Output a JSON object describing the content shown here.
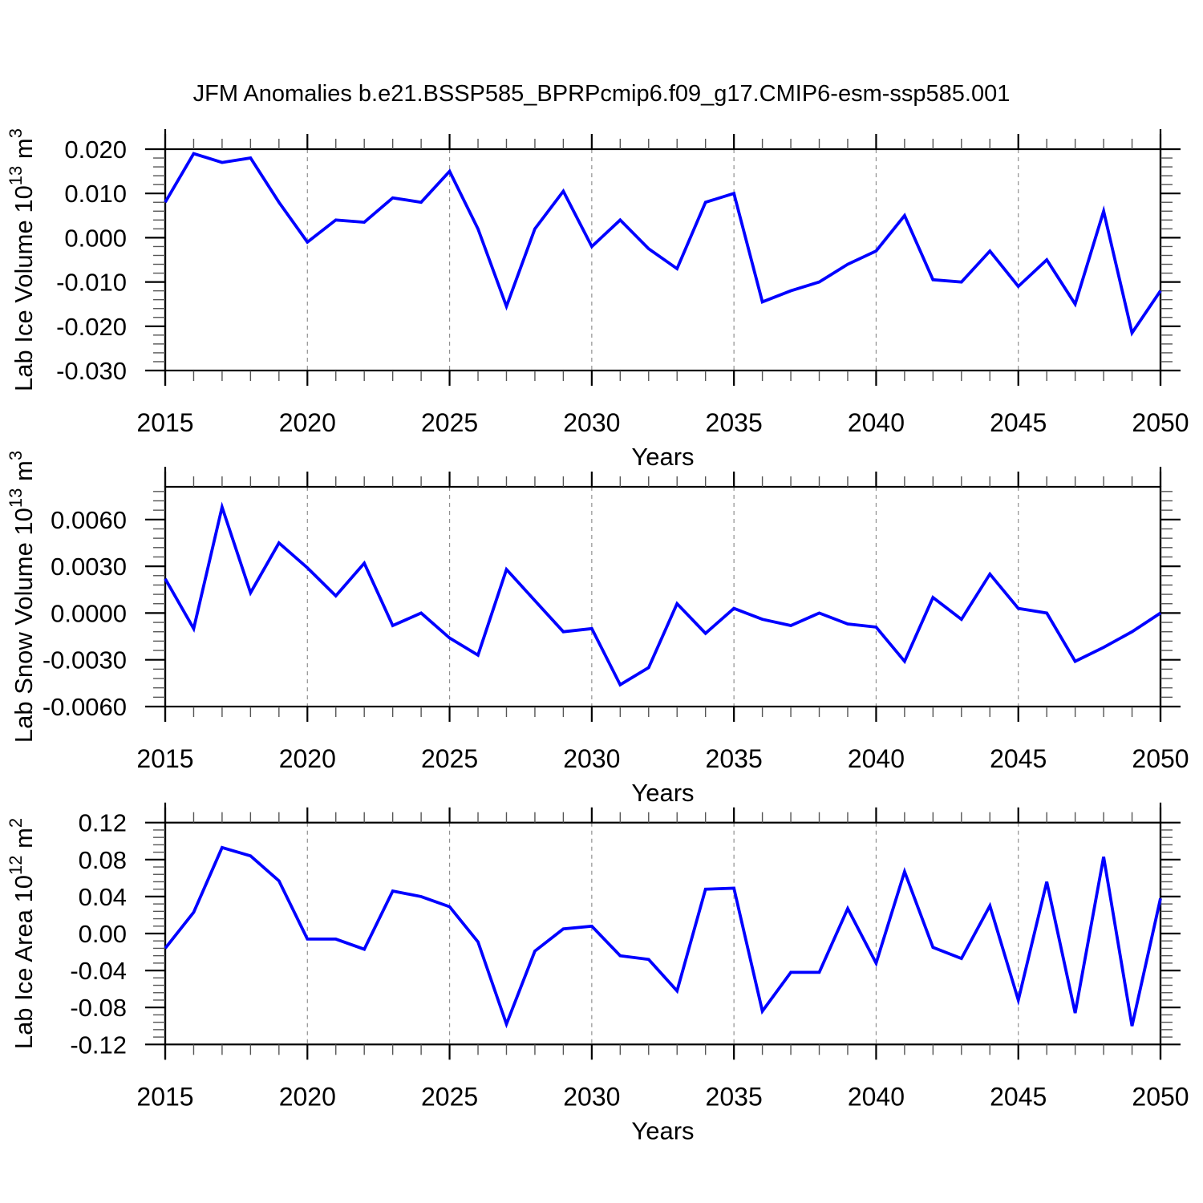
{
  "title": "JFM Anomalies b.e21.BSSP585_BPRPcmip6.f09_g17.CMIP6-esm-ssp585.001",
  "line_color": "#0000FF",
  "grid_color": "#909090",
  "frame_color": "#000000",
  "chart_data": [
    {
      "type": "line",
      "ylabel": "Lab Ice Volume 10¹³ m³",
      "ylabel_parts": [
        {
          "t": "Lab Ice Volume 10"
        },
        {
          "t": "13",
          "sup": true
        },
        {
          "t": " m"
        },
        {
          "t": "3",
          "sup": true
        }
      ],
      "xlabel": "Years",
      "x": [
        2015,
        2016,
        2017,
        2018,
        2019,
        2020,
        2021,
        2022,
        2023,
        2024,
        2025,
        2026,
        2027,
        2028,
        2029,
        2030,
        2031,
        2032,
        2033,
        2034,
        2035,
        2036,
        2037,
        2038,
        2039,
        2040,
        2041,
        2042,
        2043,
        2044,
        2045,
        2046,
        2047,
        2048,
        2049,
        2050
      ],
      "values": [
        0.008,
        0.019,
        0.017,
        0.018,
        0.008,
        -0.001,
        0.004,
        0.0035,
        0.009,
        0.008,
        0.015,
        0.002,
        -0.0155,
        0.002,
        0.0105,
        -0.002,
        0.004,
        -0.0025,
        -0.007,
        0.008,
        0.01,
        -0.0145,
        -0.012,
        -0.01,
        -0.006,
        -0.003,
        0.005,
        -0.0095,
        -0.01,
        -0.003,
        -0.011,
        -0.005,
        -0.015,
        0.006,
        -0.0215,
        -0.012
      ],
      "xlim": [
        2015,
        2050
      ],
      "ylim": [
        -0.03,
        0.02
      ],
      "ytick_values": [
        0.02,
        0.01,
        0.0,
        -0.01,
        -0.02,
        -0.03
      ],
      "ytick_labels": [
        "0.020",
        "0.010",
        "0.000",
        "-0.010",
        "-0.020",
        "-0.030"
      ],
      "ytick_minor_step": 0.002,
      "xtick_label_years": [
        2015,
        2020,
        2025,
        2030,
        2035,
        2040,
        2045,
        2050
      ],
      "xtick_labels": [
        "2015",
        "2020",
        "2025",
        "2030",
        "2035",
        "2040",
        "2045",
        "2050"
      ],
      "grid_x": [
        2020,
        2025,
        2030,
        2035,
        2040,
        2045
      ]
    },
    {
      "type": "line",
      "ylabel": "Lab Snow Volume 10¹³ m³",
      "ylabel_parts": [
        {
          "t": "Lab Snow Volume 10"
        },
        {
          "t": "13",
          "sup": true
        },
        {
          "t": " m"
        },
        {
          "t": "3",
          "sup": true
        }
      ],
      "xlabel": "Years",
      "x": [
        2015,
        2016,
        2017,
        2018,
        2019,
        2020,
        2021,
        2022,
        2023,
        2024,
        2025,
        2026,
        2027,
        2028,
        2029,
        2030,
        2031,
        2032,
        2033,
        2034,
        2035,
        2036,
        2037,
        2038,
        2039,
        2040,
        2041,
        2042,
        2043,
        2044,
        2045,
        2046,
        2047,
        2048,
        2049,
        2050
      ],
      "values": [
        0.0022,
        -0.001,
        0.0068,
        0.0013,
        0.0045,
        0.0029,
        0.0011,
        0.0032,
        -0.0008,
        0.0,
        -0.0016,
        -0.0027,
        0.0028,
        0.0008,
        -0.0012,
        -0.001,
        -0.0046,
        -0.0035,
        0.0006,
        -0.0013,
        0.0003,
        -0.0004,
        -0.0008,
        0.0,
        -0.0007,
        -0.0009,
        -0.0031,
        0.001,
        -0.0004,
        0.0025,
        0.0003,
        0.0,
        -0.0031,
        -0.0022,
        -0.0012,
        0.0
      ],
      "xlim": [
        2015,
        2050
      ],
      "ylim": [
        -0.006,
        0.0081
      ],
      "ytick_values": [
        0.006,
        0.003,
        0.0,
        -0.003,
        -0.006
      ],
      "ytick_labels": [
        "0.0060",
        "0.0030",
        "0.0000",
        "-0.0030",
        "-0.0060"
      ],
      "ytick_minor_step": 0.0006,
      "xtick_label_years": [
        2015,
        2020,
        2025,
        2030,
        2035,
        2040,
        2045,
        2050
      ],
      "xtick_labels": [
        "2015",
        "2020",
        "2025",
        "2030",
        "2035",
        "2040",
        "2045",
        "2050"
      ],
      "grid_x": [
        2020,
        2025,
        2030,
        2035,
        2040,
        2045
      ]
    },
    {
      "type": "line",
      "ylabel": "Lab Ice Area 10¹² m²",
      "ylabel_parts": [
        {
          "t": "Lab Ice Area 10"
        },
        {
          "t": "12",
          "sup": true
        },
        {
          "t": " m"
        },
        {
          "t": "2",
          "sup": true
        }
      ],
      "xlabel": "Years",
      "x": [
        2015,
        2016,
        2017,
        2018,
        2019,
        2020,
        2021,
        2022,
        2023,
        2024,
        2025,
        2026,
        2027,
        2028,
        2029,
        2030,
        2031,
        2032,
        2033,
        2034,
        2035,
        2036,
        2037,
        2038,
        2039,
        2040,
        2041,
        2042,
        2043,
        2044,
        2045,
        2046,
        2047,
        2048,
        2049,
        2050
      ],
      "values": [
        -0.016,
        0.023,
        0.093,
        0.084,
        0.057,
        -0.006,
        -0.006,
        -0.017,
        0.046,
        0.04,
        0.029,
        -0.009,
        -0.098,
        -0.019,
        0.005,
        0.008,
        -0.024,
        -0.028,
        -0.062,
        0.048,
        0.049,
        -0.084,
        -0.042,
        -0.042,
        0.027,
        -0.032,
        0.067,
        -0.015,
        -0.027,
        0.03,
        -0.072,
        0.056,
        -0.086,
        0.083,
        -0.1,
        0.038
      ],
      "xlim": [
        2015,
        2050
      ],
      "ylim": [
        -0.12,
        0.12
      ],
      "ytick_values": [
        0.12,
        0.08,
        0.04,
        0.0,
        -0.04,
        -0.08,
        -0.12
      ],
      "ytick_labels": [
        "0.12",
        "0.08",
        "0.04",
        "0.00",
        "-0.04",
        "-0.08",
        "-0.12"
      ],
      "ytick_minor_step": 0.008,
      "xtick_label_years": [
        2015,
        2020,
        2025,
        2030,
        2035,
        2040,
        2045,
        2050
      ],
      "xtick_labels": [
        "2015",
        "2020",
        "2025",
        "2030",
        "2035",
        "2040",
        "2045",
        "2050"
      ],
      "grid_x": [
        2020,
        2025,
        2030,
        2035,
        2040,
        2045
      ]
    }
  ]
}
